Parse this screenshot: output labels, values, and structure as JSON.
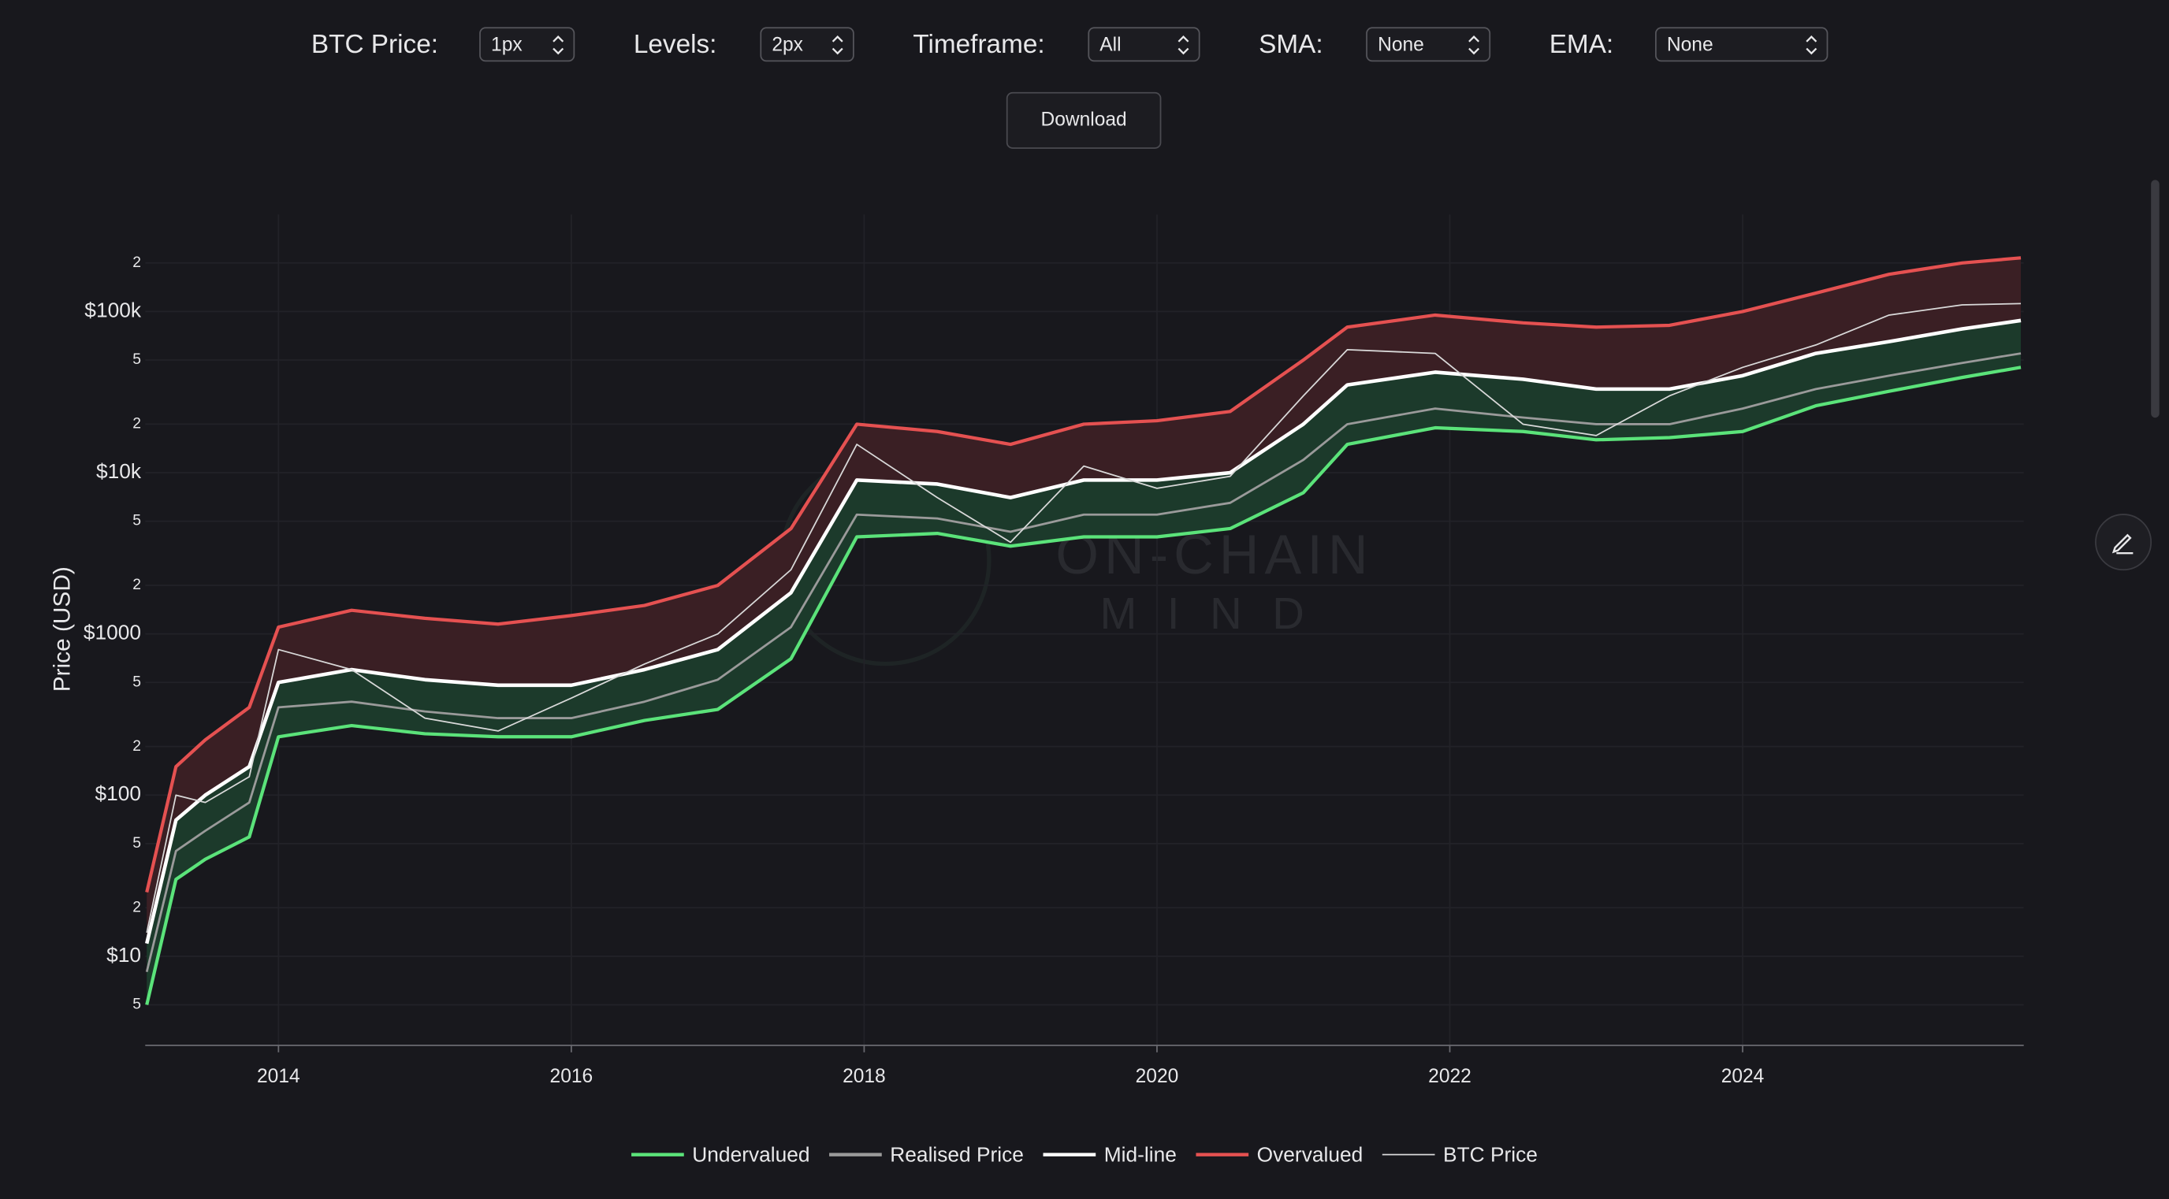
{
  "controls": [
    {
      "label": "BTC Price:",
      "value": "1px"
    },
    {
      "label": "Levels:",
      "value": "2px"
    },
    {
      "label": "Timeframe:",
      "value": "All"
    },
    {
      "label": "SMA:",
      "value": "None"
    },
    {
      "label": "EMA:",
      "value": "None"
    }
  ],
  "download": "Download",
  "watermark": [
    "ON-CHAIN",
    "MIND"
  ],
  "chart_data": {
    "type": "line",
    "y_label": "Price (USD)",
    "log_y": true,
    "grid": true,
    "x": [
      2013.1,
      2013.3,
      2013.5,
      2013.8,
      2014.0,
      2014.5,
      2015.0,
      2015.5,
      2016.0,
      2016.5,
      2017.0,
      2017.5,
      2017.95,
      2018.5,
      2019.0,
      2019.5,
      2020.0,
      2020.5,
      2021.0,
      2021.3,
      2021.9,
      2022.5,
      2023.0,
      2023.5,
      2024.0,
      2024.5,
      2025.0,
      2025.5,
      2025.9
    ],
    "xlim": [
      2013.09,
      2025.92
    ],
    "xticks": [
      2014,
      2016,
      2018,
      2020,
      2022,
      2024
    ],
    "ylim": [
      2.8,
      400000
    ],
    "yticks": [
      5,
      {
        "value": 10,
        "label": "$10"
      },
      {
        "value": 20,
        "label": "2"
      },
      {
        "value": 50,
        "label": "5"
      },
      {
        "value": 100,
        "label": "$100"
      },
      {
        "value": 200,
        "label": "2"
      },
      {
        "value": 500,
        "label": "5"
      },
      {
        "value": 1000,
        "label": "$1000"
      },
      {
        "value": 2000,
        "label": "2"
      },
      {
        "value": 5000,
        "label": "5"
      },
      {
        "value": 10000,
        "label": "$10k"
      },
      {
        "value": 20000,
        "label": "2"
      },
      {
        "value": 50000,
        "label": "5"
      },
      {
        "value": 100000,
        "label": "$100k"
      },
      {
        "value": 200000,
        "label": "2"
      }
    ],
    "series": [
      {
        "name": "Undervalued",
        "color": "#5be37a",
        "values": [
          5,
          30,
          40,
          55,
          230,
          270,
          240,
          230,
          230,
          290,
          340,
          700,
          4000,
          4200,
          3500,
          4000,
          4000,
          4500,
          7500,
          15000,
          19000,
          18000,
          16000,
          16500,
          18000,
          26000,
          32000,
          39000,
          45000
        ]
      },
      {
        "name": "Realised Price",
        "color": "#9a9a9a",
        "values": [
          8,
          45,
          60,
          90,
          350,
          380,
          330,
          300,
          300,
          380,
          520,
          1100,
          5500,
          5200,
          4300,
          5500,
          5500,
          6500,
          12000,
          20000,
          25000,
          22000,
          20000,
          20000,
          25000,
          33000,
          40000,
          48000,
          55000
        ]
      },
      {
        "name": "Mid-line",
        "color": "#ffffff",
        "values": [
          12,
          70,
          100,
          150,
          500,
          600,
          520,
          480,
          480,
          600,
          800,
          1800,
          9000,
          8500,
          7000,
          9000,
          9000,
          10000,
          20000,
          35000,
          42000,
          38000,
          33000,
          33000,
          40000,
          55000,
          65000,
          78000,
          88000
        ]
      },
      {
        "name": "Overvalued",
        "color": "#e55151",
        "values": [
          25,
          150,
          220,
          350,
          1100,
          1400,
          1250,
          1150,
          1300,
          1500,
          2000,
          4500,
          20000,
          18000,
          15000,
          20000,
          21000,
          24000,
          50000,
          80000,
          95000,
          85000,
          80000,
          82000,
          100000,
          130000,
          170000,
          200000,
          215000
        ]
      },
      {
        "name": "BTC Price",
        "color": "#d9d9d9",
        "values": [
          14,
          100,
          90,
          130,
          800,
          600,
          300,
          250,
          400,
          650,
          1000,
          2500,
          15000,
          7000,
          3700,
          11000,
          8000,
          9500,
          30000,
          58000,
          55000,
          20000,
          17000,
          30000,
          45000,
          62000,
          95000,
          110000,
          112000
        ]
      }
    ]
  }
}
